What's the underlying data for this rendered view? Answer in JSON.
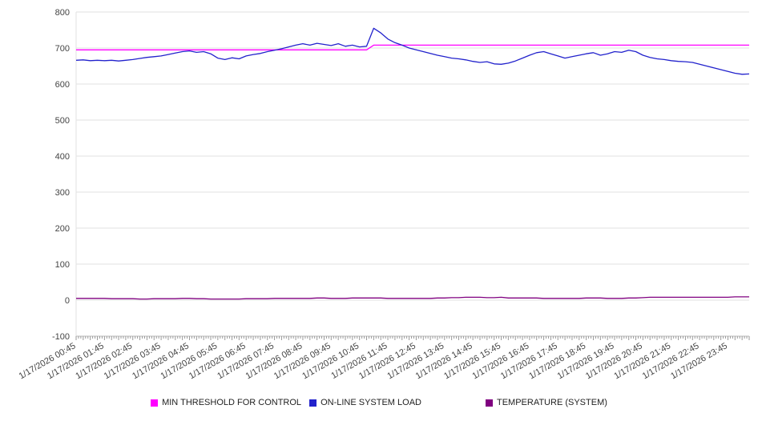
{
  "chart_data": {
    "type": "line",
    "title": "",
    "xlabel": "",
    "ylabel": "",
    "ylim": [
      -100,
      800
    ],
    "y_ticks": [
      -100,
      0,
      100,
      200,
      300,
      400,
      500,
      600,
      700,
      800
    ],
    "grid": true,
    "legend_position": "bottom",
    "x_interval_minutes": 15,
    "points_per_label": 4,
    "x_tick_labels": [
      "1/17/2026 00:45",
      "1/17/2026 01:45",
      "1/17/2026 02:45",
      "1/17/2026 03:45",
      "1/17/2026 04:45",
      "1/17/2026 05:45",
      "1/17/2026 06:45",
      "1/17/2026 07:45",
      "1/17/2026 08:45",
      "1/17/2026 09:45",
      "1/17/2026 10:45",
      "1/17/2026 11:45",
      "1/17/2026 12:45",
      "1/17/2026 13:45",
      "1/17/2026 14:45",
      "1/17/2026 15:45",
      "1/17/2026 16:45",
      "1/17/2026 17:45",
      "1/17/2026 18:45",
      "1/17/2026 19:45",
      "1/17/2026 20:45",
      "1/17/2026 21:45",
      "1/17/2026 22:45",
      "1/17/2026 23:45"
    ],
    "series": [
      {
        "name": "MIN THRESHOLD FOR CONTROL",
        "color": "#ff00ff",
        "values": [
          695,
          695,
          695,
          695,
          695,
          695,
          695,
          695,
          695,
          695,
          695,
          695,
          695,
          695,
          695,
          695,
          695,
          695,
          695,
          695,
          695,
          695,
          695,
          695,
          695,
          695,
          695,
          695,
          695,
          695,
          695,
          695,
          695,
          695,
          695,
          695,
          695,
          695,
          695,
          695,
          695,
          695,
          708,
          708,
          708,
          708,
          708,
          708,
          708,
          708,
          708,
          708,
          708,
          708,
          708,
          708,
          708,
          708,
          708,
          708,
          708,
          708,
          708,
          708,
          708,
          708,
          708,
          708,
          708,
          708,
          708,
          708,
          708,
          708,
          708,
          708,
          708,
          708,
          708,
          708,
          708,
          708,
          708,
          708,
          708,
          708,
          708,
          708,
          708,
          708,
          708,
          708,
          708,
          708,
          708,
          708
        ]
      },
      {
        "name": "ON-LINE SYSTEM LOAD",
        "color": "#2222cc",
        "values": [
          666,
          667,
          665,
          666,
          665,
          666,
          664,
          666,
          668,
          671,
          674,
          676,
          678,
          682,
          686,
          690,
          692,
          688,
          690,
          684,
          672,
          668,
          673,
          670,
          678,
          682,
          685,
          690,
          694,
          698,
          703,
          708,
          712,
          708,
          713,
          710,
          707,
          712,
          705,
          708,
          703,
          705,
          755,
          742,
          725,
          715,
          708,
          700,
          695,
          690,
          685,
          680,
          676,
          672,
          670,
          667,
          663,
          660,
          662,
          656,
          655,
          658,
          664,
          672,
          680,
          687,
          690,
          684,
          678,
          672,
          676,
          680,
          684,
          687,
          680,
          684,
          690,
          688,
          694,
          690,
          680,
          674,
          670,
          668,
          665,
          663,
          662,
          660,
          655,
          650,
          645,
          640,
          635,
          630,
          627,
          628
        ]
      },
      {
        "name": "TEMPERATURE (SYSTEM)",
        "color": "#800080",
        "values": [
          5,
          5,
          5,
          5,
          5,
          4,
          4,
          4,
          4,
          3,
          3,
          4,
          4,
          4,
          4,
          5,
          5,
          4,
          4,
          3,
          3,
          3,
          3,
          3,
          4,
          4,
          4,
          4,
          5,
          5,
          5,
          5,
          5,
          5,
          6,
          6,
          5,
          5,
          5,
          6,
          6,
          6,
          6,
          6,
          5,
          5,
          5,
          5,
          5,
          5,
          5,
          6,
          6,
          7,
          7,
          8,
          8,
          8,
          7,
          7,
          8,
          6,
          6,
          6,
          6,
          6,
          5,
          5,
          5,
          5,
          5,
          5,
          6,
          6,
          6,
          5,
          5,
          5,
          6,
          6,
          7,
          8,
          8,
          8,
          8,
          8,
          8,
          8,
          8,
          8,
          8,
          8,
          8,
          9,
          9,
          9
        ]
      }
    ],
    "colors": {
      "grid": "#e2e2e2",
      "axis": "#bbbbbb",
      "minor_tick": "#999999",
      "tick_text": "#444444"
    }
  }
}
